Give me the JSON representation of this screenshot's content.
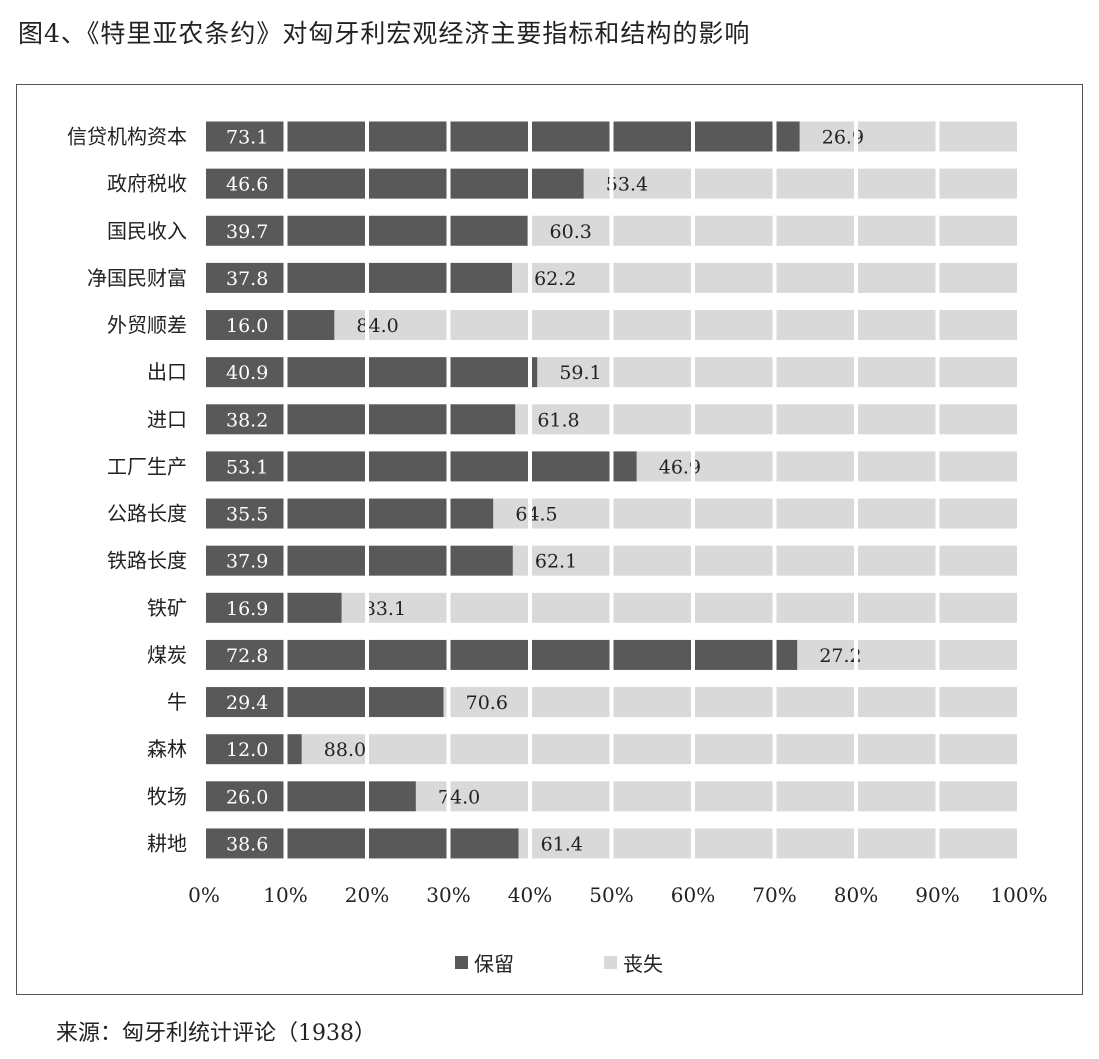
{
  "figure": {
    "title": "图4、《特里亚农条约》对匈牙利宏观经济主要指标和结构的影响",
    "source": "来源：匈牙利统计评论（1938）"
  },
  "chart_data": {
    "type": "bar",
    "orientation": "horizontal",
    "stacked": true,
    "categories": [
      "信贷机构资本",
      "政府税收",
      "国民收入",
      "净国民财富",
      "外贸顺差",
      "出口",
      "进口",
      "工厂生产",
      "公路长度",
      "铁路长度",
      "铁矿",
      "煤炭",
      "牛",
      "森林",
      "牧场",
      "耕地"
    ],
    "series": [
      {
        "name": "保留",
        "color": "#595959",
        "label_color": "#ffffff",
        "values": [
          73.1,
          46.6,
          39.7,
          37.8,
          16.0,
          40.9,
          38.2,
          53.1,
          35.5,
          37.9,
          16.9,
          72.8,
          29.4,
          12.0,
          26.0,
          38.6
        ]
      },
      {
        "name": "丧失",
        "color": "#d9d9d9",
        "label_color": "#222222",
        "values": [
          26.9,
          53.4,
          60.3,
          62.2,
          84.0,
          59.1,
          61.8,
          46.9,
          64.5,
          62.1,
          83.1,
          27.2,
          70.6,
          88.0,
          74.0,
          61.4
        ]
      }
    ],
    "xlim": [
      0,
      100
    ],
    "x_ticks": [
      "0%",
      "10%",
      "20%",
      "30%",
      "40%",
      "50%",
      "60%",
      "70%",
      "80%",
      "90%",
      "100%"
    ],
    "grid": true,
    "legend": "bottom"
  }
}
